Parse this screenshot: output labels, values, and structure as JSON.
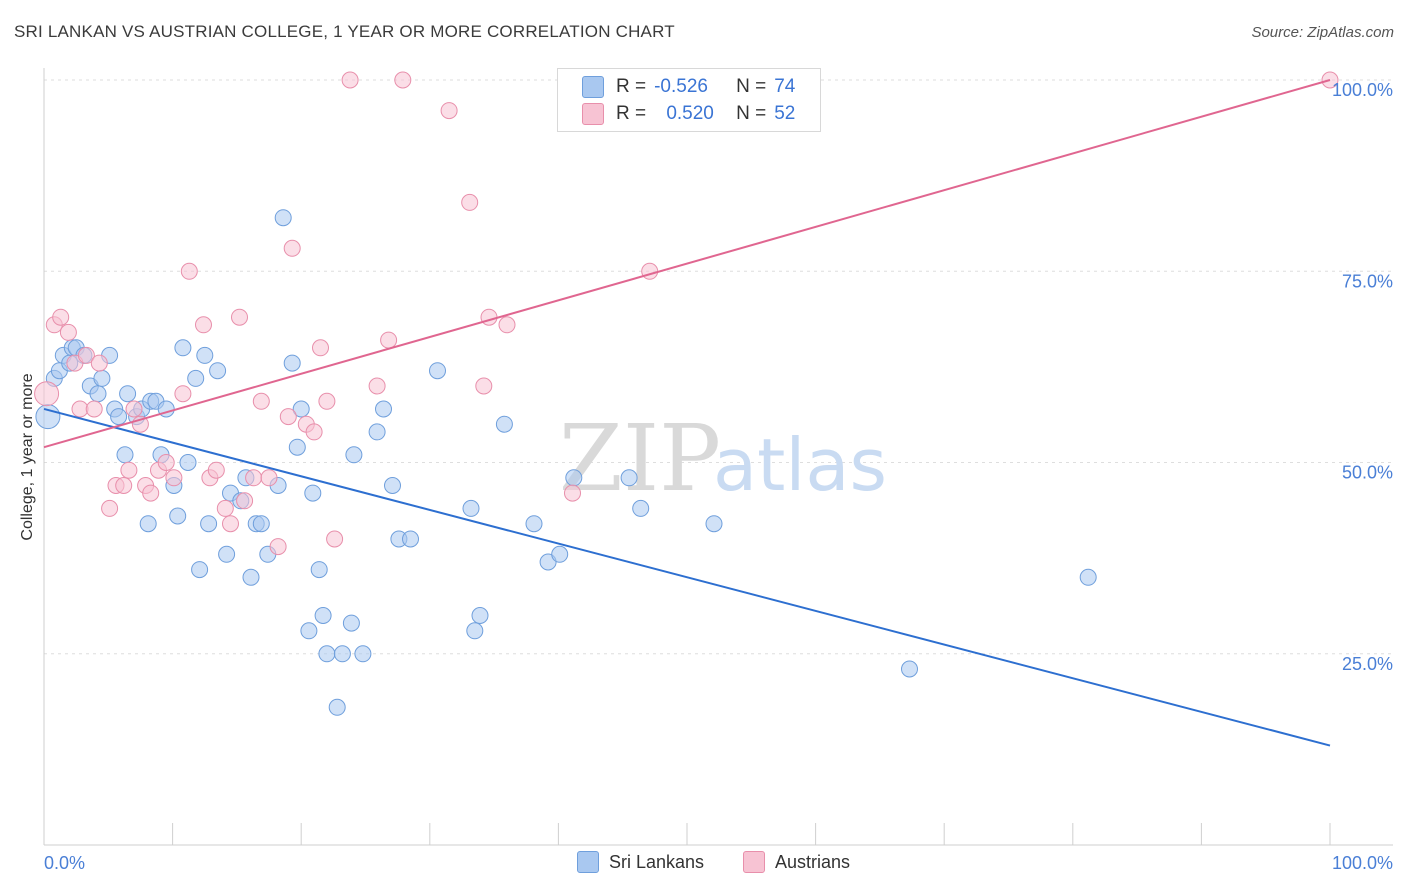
{
  "title": "SRI LANKAN VS AUSTRIAN COLLEGE, 1 YEAR OR MORE CORRELATION CHART",
  "source": "Source: ZipAtlas.com",
  "watermark": {
    "zip": "ZIP",
    "atlas": "atlas"
  },
  "legend": {
    "rows": [
      {
        "r_label": "R =",
        "r_value": "-0.526",
        "n_label": "N =",
        "n_value": "74",
        "color": "#a9c8f0",
        "border": "#6f9fdc"
      },
      {
        "r_label": "R =",
        "r_value": "0.520",
        "n_label": "N =",
        "n_value": "52",
        "color": "#f7c3d3",
        "border": "#e88fab"
      }
    ]
  },
  "bottom_legend": {
    "sri": "Sri Lankans",
    "aus": "Austrians"
  },
  "chart_data": {
    "type": "scatter",
    "title": "SRI LANKAN VS AUSTRIAN COLLEGE, 1 YEAR OR MORE CORRELATION CHART",
    "xlabel": "",
    "ylabel": "College, 1 year or more",
    "xlim": [
      0,
      100
    ],
    "ylim": [
      0,
      102
    ],
    "x_tick_labels": [
      "0.0%",
      "100.0%"
    ],
    "y_ticks": [
      25,
      50,
      75,
      100
    ],
    "y_tick_labels": [
      "25.0%",
      "50.0%",
      "75.0%",
      "100.0%"
    ],
    "series": [
      {
        "name": "Sri Lankans",
        "color": "#6f9fdc",
        "fill": "#a9c8f0",
        "line_color": "#2d6fd0",
        "r": -0.526,
        "n": 74,
        "trend": {
          "x": [
            0,
            100
          ],
          "y": [
            57.0,
            13.0
          ]
        },
        "points": [
          [
            0.3,
            56
          ],
          [
            0.8,
            61
          ],
          [
            1.2,
            62
          ],
          [
            1.5,
            64
          ],
          [
            2.0,
            63
          ],
          [
            2.2,
            65
          ],
          [
            2.5,
            65
          ],
          [
            3.1,
            64
          ],
          [
            3.6,
            60
          ],
          [
            4.2,
            59
          ],
          [
            4.5,
            61
          ],
          [
            5.1,
            64
          ],
          [
            5.5,
            57
          ],
          [
            5.8,
            56
          ],
          [
            6.3,
            51
          ],
          [
            6.5,
            59
          ],
          [
            7.2,
            56
          ],
          [
            7.6,
            57
          ],
          [
            8.1,
            42
          ],
          [
            8.3,
            58
          ],
          [
            8.7,
            58
          ],
          [
            9.1,
            51
          ],
          [
            9.5,
            57
          ],
          [
            10.1,
            47
          ],
          [
            10.4,
            43
          ],
          [
            10.8,
            65
          ],
          [
            11.2,
            50
          ],
          [
            11.8,
            61
          ],
          [
            12.1,
            36
          ],
          [
            12.5,
            64
          ],
          [
            12.8,
            42
          ],
          [
            13.5,
            62
          ],
          [
            14.2,
            38
          ],
          [
            14.5,
            46
          ],
          [
            15.3,
            45
          ],
          [
            15.7,
            48
          ],
          [
            16.1,
            35
          ],
          [
            16.5,
            42
          ],
          [
            16.9,
            42
          ],
          [
            17.4,
            38
          ],
          [
            18.2,
            47
          ],
          [
            18.6,
            82
          ],
          [
            19.3,
            63
          ],
          [
            19.7,
            52
          ],
          [
            20.0,
            57
          ],
          [
            20.6,
            28
          ],
          [
            20.9,
            46
          ],
          [
            21.4,
            36
          ],
          [
            21.7,
            30
          ],
          [
            22.0,
            25
          ],
          [
            22.8,
            18
          ],
          [
            23.2,
            25
          ],
          [
            23.9,
            29
          ],
          [
            24.1,
            51
          ],
          [
            24.8,
            25
          ],
          [
            25.9,
            54
          ],
          [
            26.4,
            57
          ],
          [
            27.1,
            47
          ],
          [
            27.6,
            40
          ],
          [
            28.5,
            40
          ],
          [
            30.6,
            62
          ],
          [
            33.2,
            44
          ],
          [
            33.5,
            28
          ],
          [
            33.9,
            30
          ],
          [
            35.8,
            55
          ],
          [
            38.1,
            42
          ],
          [
            39.2,
            37
          ],
          [
            40.1,
            38
          ],
          [
            41.2,
            48
          ],
          [
            45.5,
            48
          ],
          [
            46.4,
            44
          ],
          [
            52.1,
            42
          ],
          [
            81.2,
            35
          ],
          [
            67.3,
            23
          ]
        ]
      },
      {
        "name": "Austrians",
        "color": "#e88fab",
        "fill": "#f7c3d3",
        "line_color": "#e06690",
        "r": 0.52,
        "n": 52,
        "trend": {
          "x": [
            0,
            100
          ],
          "y": [
            52.0,
            100.0
          ]
        },
        "points": [
          [
            0.2,
            59
          ],
          [
            0.8,
            68
          ],
          [
            1.3,
            69
          ],
          [
            1.9,
            67
          ],
          [
            2.4,
            63
          ],
          [
            2.8,
            57
          ],
          [
            3.3,
            64
          ],
          [
            3.9,
            57
          ],
          [
            4.3,
            63
          ],
          [
            5.1,
            44
          ],
          [
            5.6,
            47
          ],
          [
            6.2,
            47
          ],
          [
            6.6,
            49
          ],
          [
            7.0,
            57
          ],
          [
            7.5,
            55
          ],
          [
            7.9,
            47
          ],
          [
            8.3,
            46
          ],
          [
            8.9,
            49
          ],
          [
            9.5,
            50
          ],
          [
            10.1,
            48
          ],
          [
            10.8,
            59
          ],
          [
            11.3,
            75
          ],
          [
            12.4,
            68
          ],
          [
            12.9,
            48
          ],
          [
            13.4,
            49
          ],
          [
            14.1,
            44
          ],
          [
            14.5,
            42
          ],
          [
            15.2,
            69
          ],
          [
            15.6,
            45
          ],
          [
            16.3,
            48
          ],
          [
            16.9,
            58
          ],
          [
            17.5,
            48
          ],
          [
            18.2,
            39
          ],
          [
            19.0,
            56
          ],
          [
            19.3,
            78
          ],
          [
            20.4,
            55
          ],
          [
            21.0,
            54
          ],
          [
            21.5,
            65
          ],
          [
            22.0,
            58
          ],
          [
            22.6,
            40
          ],
          [
            23.8,
            100
          ],
          [
            25.9,
            60
          ],
          [
            26.8,
            66
          ],
          [
            27.9,
            100
          ],
          [
            31.5,
            96
          ],
          [
            33.1,
            84
          ],
          [
            34.2,
            60
          ],
          [
            34.6,
            69
          ],
          [
            36.0,
            68
          ],
          [
            41.1,
            46
          ],
          [
            47.1,
            75
          ],
          [
            100.0,
            100
          ]
        ]
      }
    ]
  }
}
